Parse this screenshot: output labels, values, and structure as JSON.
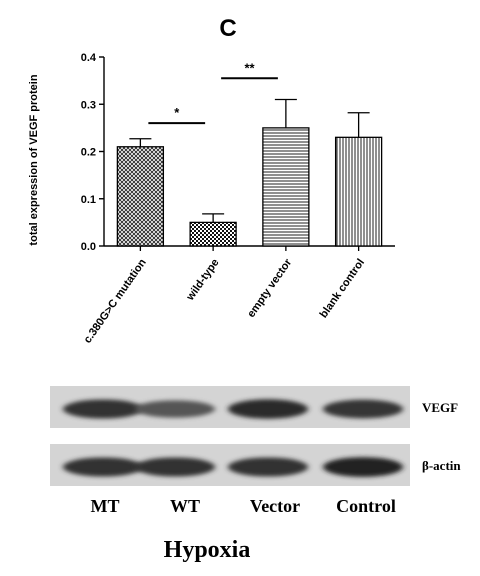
{
  "chart_data": {
    "type": "bar",
    "panel_label": "C",
    "ylabel": "total expression of VEGF protein",
    "xlabel": "",
    "ylim": [
      0,
      0.4
    ],
    "yticks": [
      "0.0",
      "0.1",
      "0.2",
      "0.3",
      "0.4"
    ],
    "grid": false,
    "categories": [
      "c.380G>C mutation",
      "wild-type",
      "empty vector",
      "blank control"
    ],
    "values": [
      0.21,
      0.05,
      0.25,
      0.23
    ],
    "errors": [
      0.017,
      0.018,
      0.06,
      0.052
    ],
    "patterns": [
      "crosshatch",
      "checker",
      "horizontal-lines",
      "vertical-lines"
    ],
    "significance": [
      {
        "label": "*",
        "between": [
          "c.380G>C mutation",
          "wild-type"
        ]
      },
      {
        "label": "**",
        "between": [
          "wild-type",
          "empty vector"
        ]
      }
    ]
  },
  "blot": {
    "bands": [
      {
        "label": "VEGF",
        "intensities": [
          0.85,
          0.55,
          0.9,
          0.8
        ]
      },
      {
        "label": "β-actin",
        "intensities": [
          0.85,
          0.85,
          0.85,
          0.95
        ]
      }
    ],
    "lanes": [
      "MT",
      "WT",
      "Vector",
      "Control"
    ],
    "condition": "Hypoxia"
  }
}
